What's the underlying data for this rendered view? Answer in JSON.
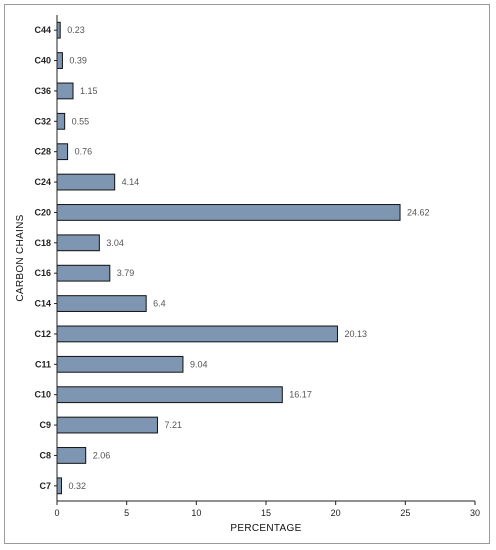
{
  "chart_data": {
    "type": "bar",
    "orientation": "horizontal",
    "categories": [
      "C44",
      "C40",
      "C36",
      "C32",
      "C28",
      "C24",
      "C20",
      "C18",
      "C16",
      "C14",
      "C12",
      "C11",
      "C10",
      "C9",
      "C8",
      "C7"
    ],
    "values": [
      0.23,
      0.39,
      1.15,
      0.55,
      0.76,
      4.14,
      24.62,
      3.04,
      3.79,
      6.4,
      20.13,
      9.04,
      16.17,
      7.21,
      2.06,
      0.32
    ],
    "value_labels": [
      "0.23",
      "0.39",
      "1.15",
      "0.55",
      "0.76",
      "4.14",
      "24.62",
      "3.04",
      "3.79",
      "6.4",
      "20.13",
      "9.04",
      "16.17",
      "7.21",
      "2.06",
      "0.32"
    ],
    "xlabel": "PERCENTAGE",
    "ylabel": "CARBON CHAINS",
    "xlim": [
      0,
      30
    ],
    "xticks": [
      "0",
      "5",
      "10",
      "15",
      "20",
      "25",
      "30"
    ],
    "grid": false,
    "bar_color": "#7f96b3",
    "bar_edge_color": "#111111"
  }
}
